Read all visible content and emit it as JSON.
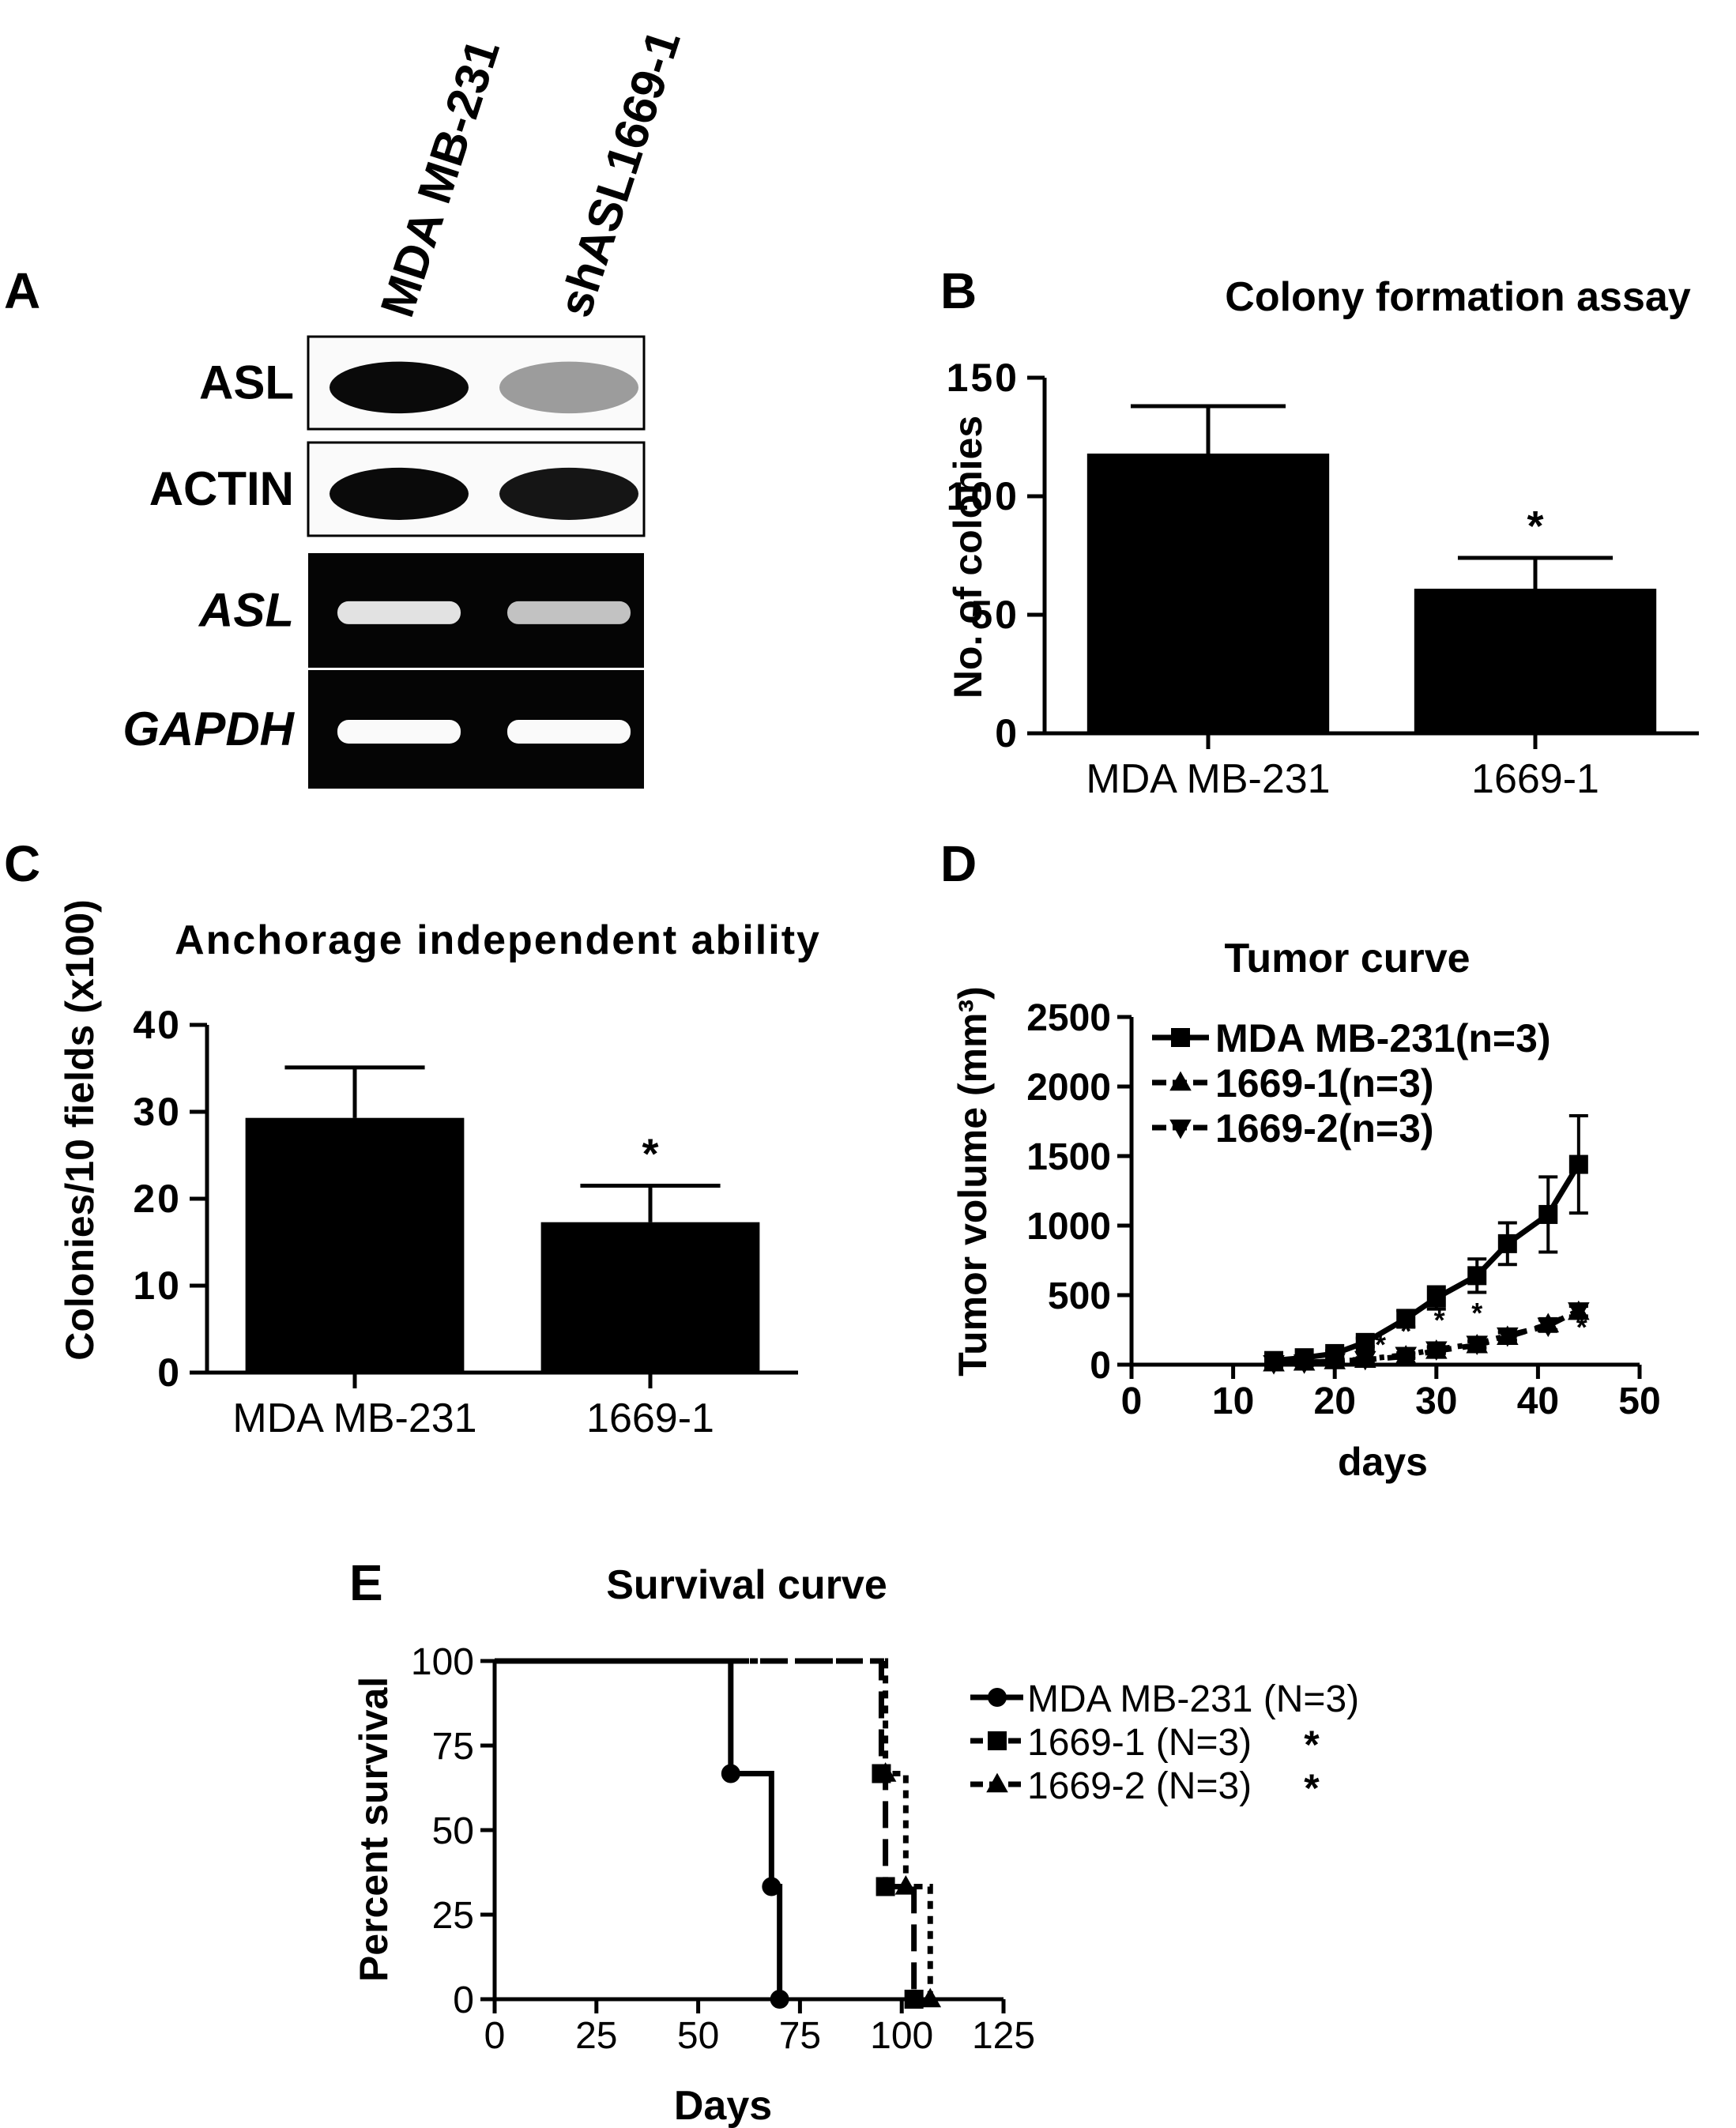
{
  "panels": {
    "a": "A",
    "b": "B",
    "c": "C",
    "d": "D",
    "e": "E"
  },
  "blot": {
    "lanes": [
      "MDA MB-231",
      "shASL1669-1"
    ],
    "rows": [
      {
        "label": "ASL",
        "italic": false,
        "type": "western",
        "intensity": [
          1.0,
          0.35
        ]
      },
      {
        "label": "ACTIN",
        "italic": false,
        "type": "western",
        "intensity": [
          1.0,
          0.95
        ]
      },
      {
        "label": "ASL",
        "italic": true,
        "type": "pcr",
        "intensity": [
          0.85,
          0.65
        ]
      },
      {
        "label": "GAPDH",
        "italic": true,
        "type": "pcr",
        "intensity": [
          1.0,
          1.0
        ]
      }
    ]
  },
  "chart_data": [
    {
      "id": "B",
      "type": "bar",
      "title": "Colony formation assay",
      "xlabel": "",
      "ylabel": "No. of colonies",
      "categories": [
        "MDA MB-231",
        "1669-1"
      ],
      "values": [
        118,
        61
      ],
      "errors": [
        20,
        13
      ],
      "significance": [
        "",
        "*"
      ],
      "ylim": [
        0,
        150
      ],
      "yticks": [
        0,
        50,
        100,
        150
      ],
      "grid": false
    },
    {
      "id": "C",
      "type": "bar",
      "title": "Anchorage independent ability",
      "xlabel": "",
      "ylabel": "Colonies/10 fields (x100)",
      "categories": [
        "MDA MB-231",
        "1669-1"
      ],
      "values": [
        29.3,
        17.3
      ],
      "errors": [
        5.8,
        4.2
      ],
      "significance": [
        "",
        "*"
      ],
      "ylim": [
        0,
        40
      ],
      "yticks": [
        0,
        10,
        20,
        30,
        40
      ],
      "grid": false
    },
    {
      "id": "D",
      "type": "line",
      "title": "Tumor curve",
      "xlabel": "days",
      "ylabel": "Tumor volume (mm³)",
      "xlim": [
        0,
        50
      ],
      "ylim": [
        0,
        2500
      ],
      "xticks": [
        0,
        10,
        20,
        30,
        40,
        50
      ],
      "yticks": [
        0,
        500,
        1000,
        1500,
        2000,
        2500
      ],
      "legend_position": "top-left",
      "grid": false,
      "series": [
        {
          "name": "MDA MB-231(n=3)",
          "marker": "square",
          "dash": "solid",
          "x": [
            14,
            17,
            20,
            23,
            27,
            30,
            34,
            37,
            41,
            44
          ],
          "y": [
            30,
            50,
            80,
            160,
            330,
            480,
            640,
            870,
            1080,
            1440
          ],
          "errors": [
            10,
            15,
            20,
            30,
            60,
            80,
            120,
            150,
            270,
            350
          ]
        },
        {
          "name": "1669-1(n=3)",
          "marker": "triangle-up",
          "dash": "dashed",
          "x": [
            14,
            17,
            20,
            23,
            27,
            30,
            34,
            37,
            41,
            44
          ],
          "y": [
            10,
            15,
            25,
            35,
            60,
            100,
            140,
            200,
            290,
            380
          ],
          "errors": [
            5,
            5,
            8,
            10,
            15,
            20,
            25,
            30,
            40,
            40
          ]
        },
        {
          "name": "1669-2(n=3)",
          "marker": "triangle-down",
          "dash": "dash-dot",
          "x": [
            14,
            17,
            20,
            23,
            27,
            30,
            34,
            37,
            41,
            44
          ],
          "y": [
            10,
            15,
            25,
            40,
            70,
            110,
            150,
            210,
            280,
            390
          ],
          "errors": [
            5,
            5,
            8,
            10,
            15,
            20,
            25,
            30,
            40,
            40
          ]
        }
      ],
      "annotations": [
        {
          "text": "*",
          "x": 30.3,
          "y": 250
        },
        {
          "text": "*",
          "x": 34,
          "y": 300
        },
        {
          "text": "*",
          "x": 37.5,
          "y": 120
        },
        {
          "text": "*",
          "x": 41.3,
          "y": 200
        },
        {
          "text": "*",
          "x": 44.3,
          "y": 200
        },
        {
          "text": "*",
          "x": 27,
          "y": 170
        },
        {
          "text": "*",
          "x": 24.5,
          "y": 75
        }
      ]
    },
    {
      "id": "E",
      "type": "line",
      "title": "Survival curve",
      "xlabel": "Days",
      "ylabel": "Percent survival",
      "xlim": [
        0,
        125
      ],
      "ylim": [
        0,
        100
      ],
      "xticks": [
        0,
        25,
        50,
        75,
        100,
        125
      ],
      "yticks": [
        0,
        25,
        50,
        75,
        100
      ],
      "legend_position": "right",
      "grid": false,
      "series": [
        {
          "name": "MDA MB-231 (N=3)",
          "marker": "circle",
          "dash": "solid",
          "x": [
            0,
            58,
            68,
            70
          ],
          "y": [
            100,
            66.7,
            33.3,
            0
          ],
          "significance": ""
        },
        {
          "name": "1669-1 (N=3)",
          "marker": "square",
          "dash": "dashed",
          "x": [
            0,
            95,
            96,
            103
          ],
          "y": [
            100,
            66.7,
            33.3,
            0
          ],
          "significance": "*"
        },
        {
          "name": "1669-2 (N=3)",
          "marker": "triangle-up",
          "dash": "dotted",
          "x": [
            0,
            96,
            101,
            107
          ],
          "y": [
            100,
            66.7,
            33.3,
            0
          ],
          "significance": "*"
        }
      ]
    }
  ]
}
